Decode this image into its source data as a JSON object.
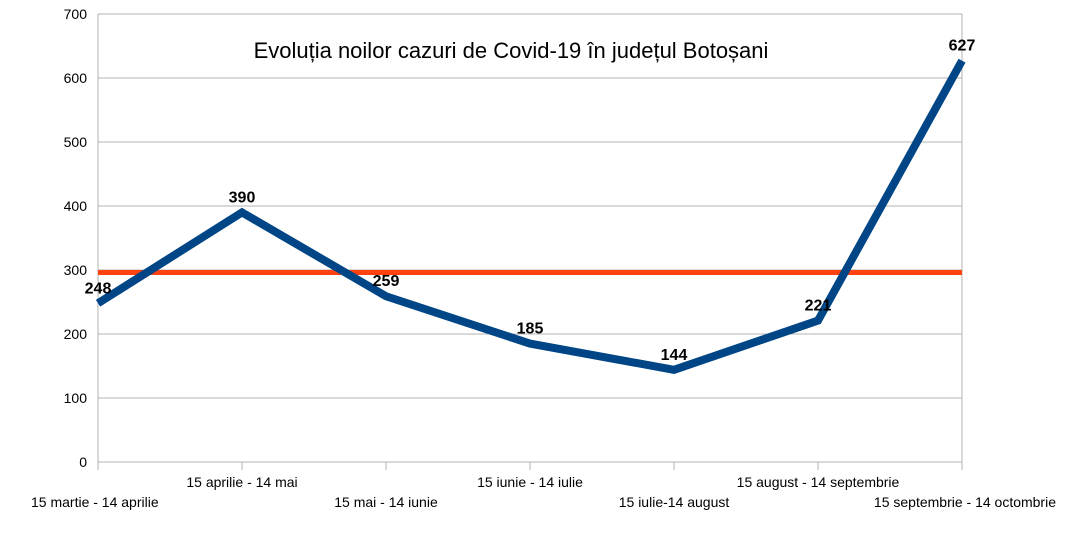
{
  "chart_data": {
    "type": "line",
    "title": "Evoluția noilor cazuri de Covid-19 în județul Botoșani",
    "xlabel": "",
    "ylabel": "",
    "ylim": [
      0,
      700
    ],
    "yticks": [
      0,
      100,
      200,
      300,
      400,
      500,
      600,
      700
    ],
    "grid": true,
    "legend": "none",
    "categories": [
      "15 martie - 14 aprilie",
      "15 aprilie - 14 mai",
      "15 mai - 14 iunie",
      "15 iunie - 14 iulie",
      "15 iulie-14 august",
      "15 august - 14 septembrie",
      "15 septembrie - 14 octombrie"
    ],
    "series": [
      {
        "values": [
          248,
          390,
          259,
          185,
          144,
          221,
          627
        ],
        "color": "#004586"
      },
      {
        "values": [
          296,
          296,
          296,
          296,
          296,
          296,
          296
        ],
        "color": "#ff420e"
      }
    ],
    "data_labels": [
      "248",
      "390",
      "259",
      "185",
      "144",
      "221",
      "627"
    ]
  }
}
